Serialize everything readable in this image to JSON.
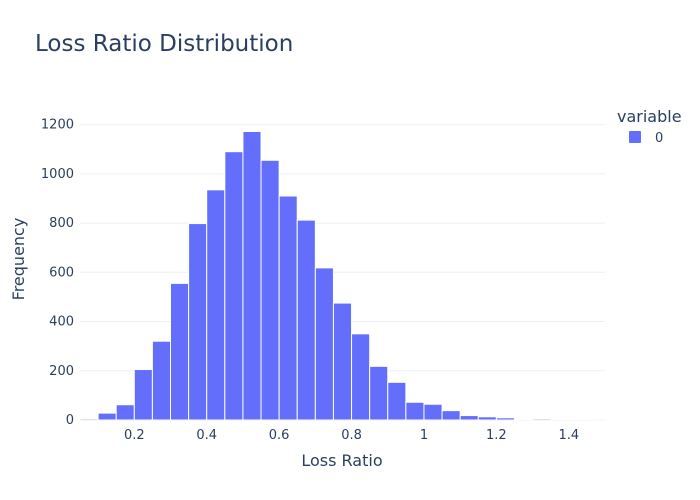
{
  "chart_data": {
    "type": "bar",
    "title": "Loss Ratio Distribution",
    "xlabel": "Loss Ratio",
    "ylabel": "Frequency",
    "legend": {
      "title": "variable",
      "entries": [
        "0"
      ],
      "placement": "top-right"
    },
    "color": "#636efa",
    "xlim": [
      0.05,
      1.5
    ],
    "ylim": [
      0,
      1300
    ],
    "bin_width": 0.05,
    "xticks": [
      0.2,
      0.4,
      0.6,
      0.8,
      1,
      1.2,
      1.4
    ],
    "xtick_labels": [
      "0.2",
      "0.4",
      "0.6",
      "0.8",
      "1",
      "1.2",
      "1.4"
    ],
    "yticks": [
      0,
      200,
      400,
      600,
      800,
      1000,
      1200
    ],
    "ytick_labels": [
      "0",
      "200",
      "400",
      "600",
      "800",
      "1000",
      "1200"
    ],
    "grid": true,
    "bins": [
      {
        "x0": 0.05,
        "x1": 0.1,
        "count": 5
      },
      {
        "x0": 0.1,
        "x1": 0.15,
        "count": 28
      },
      {
        "x0": 0.15,
        "x1": 0.2,
        "count": 62
      },
      {
        "x0": 0.2,
        "x1": 0.25,
        "count": 205
      },
      {
        "x0": 0.25,
        "x1": 0.3,
        "count": 320
      },
      {
        "x0": 0.3,
        "x1": 0.35,
        "count": 555
      },
      {
        "x0": 0.35,
        "x1": 0.4,
        "count": 798
      },
      {
        "x0": 0.4,
        "x1": 0.45,
        "count": 935
      },
      {
        "x0": 0.45,
        "x1": 0.5,
        "count": 1090
      },
      {
        "x0": 0.5,
        "x1": 0.55,
        "count": 1172
      },
      {
        "x0": 0.55,
        "x1": 0.6,
        "count": 1055
      },
      {
        "x0": 0.6,
        "x1": 0.65,
        "count": 910
      },
      {
        "x0": 0.65,
        "x1": 0.7,
        "count": 812
      },
      {
        "x0": 0.7,
        "x1": 0.75,
        "count": 618
      },
      {
        "x0": 0.75,
        "x1": 0.8,
        "count": 475
      },
      {
        "x0": 0.8,
        "x1": 0.85,
        "count": 350
      },
      {
        "x0": 0.85,
        "x1": 0.9,
        "count": 218
      },
      {
        "x0": 0.9,
        "x1": 0.95,
        "count": 153
      },
      {
        "x0": 0.95,
        "x1": 1.0,
        "count": 72
      },
      {
        "x0": 1.0,
        "x1": 1.05,
        "count": 64
      },
      {
        "x0": 1.05,
        "x1": 1.1,
        "count": 38
      },
      {
        "x0": 1.1,
        "x1": 1.15,
        "count": 18
      },
      {
        "x0": 1.15,
        "x1": 1.2,
        "count": 13
      },
      {
        "x0": 1.2,
        "x1": 1.25,
        "count": 9
      },
      {
        "x0": 1.25,
        "x1": 1.3,
        "count": 4
      },
      {
        "x0": 1.3,
        "x1": 1.35,
        "count": 5
      },
      {
        "x0": 1.35,
        "x1": 1.4,
        "count": 2
      },
      {
        "x0": 1.4,
        "x1": 1.45,
        "count": 3
      },
      {
        "x0": 1.45,
        "x1": 1.5,
        "count": 1
      }
    ]
  }
}
